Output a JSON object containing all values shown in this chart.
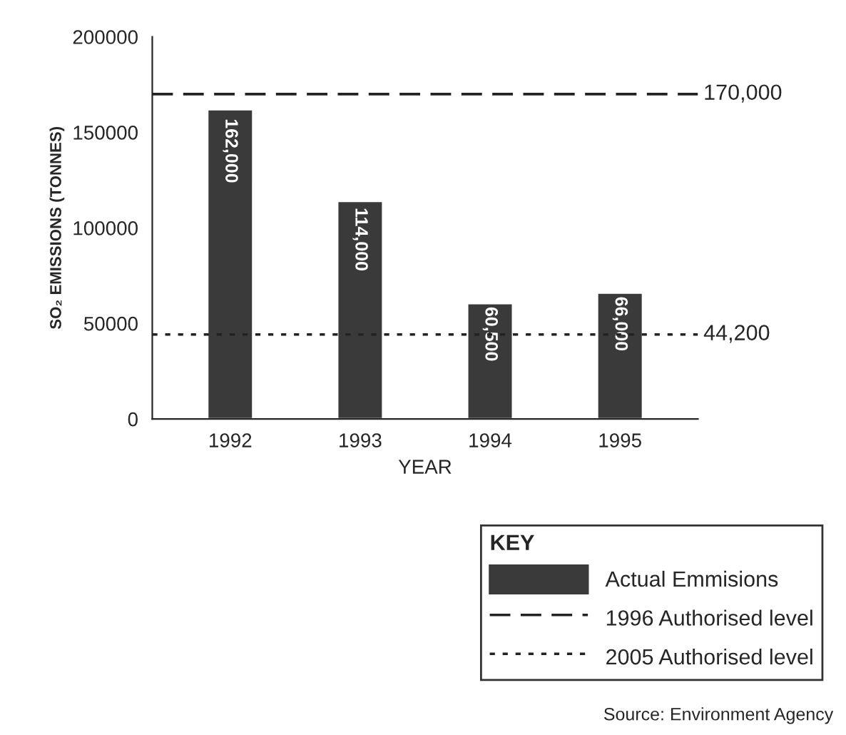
{
  "chart_data": {
    "type": "bar",
    "xlabel": "YEAR",
    "ylabel": "SO₂ EMISSIONS (TONNES)",
    "legend_title": "KEY",
    "legend": "bottom right",
    "categories": [
      "1992",
      "1993",
      "1994",
      "1995"
    ],
    "series": [
      {
        "name": "Actual Emmisions",
        "color": "#3a3a3a",
        "values": [
          162000,
          114000,
          60500,
          66000
        ],
        "value_labels": [
          "162,000",
          "114,000",
          "60,500",
          "66,000"
        ]
      }
    ],
    "ylim": [
      0,
      200000
    ],
    "yticks": [
      0,
      50000,
      100000,
      150000,
      200000
    ],
    "ref_lines": [
      {
        "axis": "y",
        "value": 170000,
        "label": "1996 Authorised level",
        "color": "#222222",
        "line_style": "dashed"
      },
      {
        "axis": "y",
        "value": 44200,
        "label": "2005 Authorised level",
        "color": "#222222",
        "line_style": "dotted"
      }
    ],
    "annotations": [
      "170,000",
      "44,200",
      "Source: Environment Agency"
    ],
    "grid": false
  }
}
